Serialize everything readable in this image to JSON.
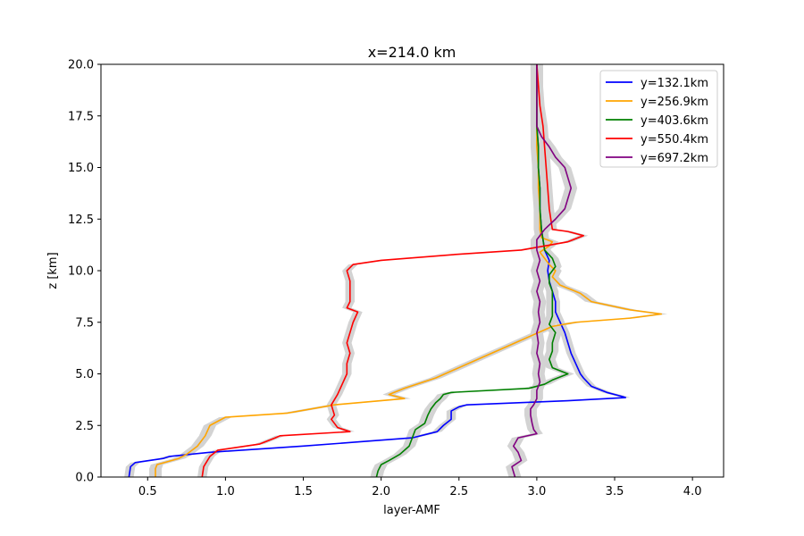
{
  "chart_data": {
    "type": "line",
    "title": "x=214.0 km",
    "xlabel": "layer-AMF",
    "ylabel": "z [km]",
    "xlim": [
      0.2,
      4.2
    ],
    "ylim": [
      0,
      20
    ],
    "xticks": [
      0.5,
      1.0,
      1.5,
      2.0,
      2.5,
      3.0,
      3.5,
      4.0
    ],
    "xtick_labels": [
      "0.5",
      "1.0",
      "1.5",
      "2.0",
      "2.5",
      "3.0",
      "3.5",
      "4.0"
    ],
    "yticks": [
      0,
      2.5,
      5,
      7.5,
      10,
      12.5,
      15,
      17.5,
      20
    ],
    "ytick_labels": [
      "0.0",
      "2.5",
      "5.0",
      "7.5",
      "10.0",
      "12.5",
      "15.0",
      "17.5",
      "20.0"
    ],
    "grid": false,
    "legend_placement": "top-right",
    "band_color": "#d3d3d3",
    "series": [
      {
        "name": "y=132.1km",
        "color": "#0000ff",
        "band_halfwidth": 0.03,
        "z": [
          0,
          0.5,
          0.7,
          0.9,
          1.0,
          1.2,
          1.5,
          1.7,
          1.9,
          2.2,
          2.5,
          2.8,
          3.2,
          3.4,
          3.5,
          3.7,
          3.85,
          3.9,
          4.1,
          4.4,
          4.8,
          5.0,
          5.5,
          6.0,
          6.5,
          7.0,
          7.5,
          8.0,
          8.5,
          9.0,
          9.5,
          10.0,
          10.5,
          11.0,
          11.5,
          12.0,
          13.0,
          14.0,
          15.0,
          16.0,
          17.0,
          18.0,
          19.0,
          20.0
        ],
        "x": [
          0.38,
          0.39,
          0.42,
          0.6,
          0.64,
          0.9,
          1.5,
          1.85,
          2.2,
          2.36,
          2.4,
          2.45,
          2.45,
          2.5,
          2.55,
          3.2,
          3.57,
          3.55,
          3.45,
          3.35,
          3.3,
          3.28,
          3.25,
          3.22,
          3.2,
          3.18,
          3.15,
          3.12,
          3.12,
          3.1,
          3.08,
          3.07,
          3.08,
          3.05,
          3.04,
          3.03,
          3.02,
          3.02,
          3.01,
          3.01,
          3.0,
          3.0,
          3.0,
          3.0
        ]
      },
      {
        "name": "y=256.9km",
        "color": "#ffa500",
        "band_halfwidth": 0.04,
        "z": [
          0,
          0.4,
          0.6,
          0.9,
          1.1,
          1.5,
          2.0,
          2.5,
          2.9,
          3.1,
          3.5,
          3.8,
          4.0,
          4.3,
          4.8,
          5.3,
          5.8,
          6.3,
          6.8,
          7.3,
          7.5,
          7.7,
          7.9,
          8.1,
          8.5,
          8.9,
          9.3,
          9.7,
          10.0,
          10.3,
          10.6,
          10.9,
          11.2,
          11.4,
          11.6,
          12.0,
          13.0,
          14.0,
          15.0,
          16.0,
          17.0,
          18.0,
          19.0,
          20.0
        ],
        "x": [
          0.55,
          0.55,
          0.56,
          0.7,
          0.75,
          0.82,
          0.87,
          0.9,
          1.0,
          1.4,
          1.7,
          2.15,
          2.05,
          2.15,
          2.35,
          2.5,
          2.65,
          2.8,
          2.95,
          3.1,
          3.25,
          3.6,
          3.8,
          3.6,
          3.35,
          3.28,
          3.15,
          3.1,
          3.12,
          3.08,
          3.05,
          3.02,
          3.08,
          3.1,
          3.03,
          3.02,
          3.02,
          3.01,
          3.01,
          3.0,
          3.0,
          3.0,
          3.0,
          3.0
        ]
      },
      {
        "name": "y=403.6km",
        "color": "#008000",
        "band_halfwidth": 0.04,
        "z": [
          0,
          0.3,
          0.6,
          0.8,
          1.1,
          1.5,
          1.9,
          2.3,
          2.6,
          3.0,
          3.3,
          3.6,
          3.8,
          4.0,
          4.1,
          4.3,
          4.5,
          4.7,
          5.0,
          5.3,
          5.7,
          6.1,
          6.5,
          7.0,
          7.4,
          7.8,
          8.2,
          8.6,
          9.0,
          9.4,
          9.8,
          10.2,
          10.6,
          11.0,
          11.5,
          12.0,
          13.0,
          14.0,
          15.0,
          16.0,
          17.0,
          18.0,
          19.0,
          20.0
        ],
        "x": [
          1.97,
          1.98,
          2.0,
          2.05,
          2.12,
          2.18,
          2.2,
          2.22,
          2.28,
          2.3,
          2.32,
          2.35,
          2.38,
          2.4,
          2.45,
          2.95,
          3.05,
          3.1,
          3.2,
          3.1,
          3.08,
          3.1,
          3.1,
          3.12,
          3.08,
          3.1,
          3.1,
          3.1,
          3.1,
          3.08,
          3.08,
          3.12,
          3.1,
          3.05,
          3.04,
          3.03,
          3.02,
          3.02,
          3.01,
          3.01,
          3.0,
          3.0,
          3.0,
          3.0
        ]
      },
      {
        "name": "y=550.4km",
        "color": "#ff0000",
        "band_halfwidth": 0.03,
        "z": [
          0,
          0.5,
          1.0,
          1.3,
          1.6,
          1.9,
          2.0,
          2.2,
          2.4,
          2.6,
          2.8,
          3.0,
          3.5,
          4.0,
          4.5,
          5.0,
          5.5,
          6.0,
          6.5,
          7.0,
          7.5,
          8.0,
          8.2,
          8.5,
          9.0,
          9.5,
          10.0,
          10.3,
          10.5,
          10.8,
          11.0,
          11.2,
          11.4,
          11.7,
          11.9,
          12.0,
          13.0,
          14.0,
          15.0,
          16.0,
          17.0,
          18.0,
          19.0,
          20.0
        ],
        "x": [
          0.85,
          0.86,
          0.9,
          0.95,
          1.22,
          1.32,
          1.35,
          1.8,
          1.72,
          1.7,
          1.68,
          1.7,
          1.68,
          1.72,
          1.75,
          1.78,
          1.78,
          1.8,
          1.78,
          1.8,
          1.82,
          1.85,
          1.78,
          1.8,
          1.8,
          1.8,
          1.78,
          1.82,
          2.0,
          2.5,
          2.9,
          3.05,
          3.2,
          3.3,
          3.2,
          3.1,
          3.08,
          3.07,
          3.06,
          3.05,
          3.04,
          3.02,
          3.01,
          3.0
        ]
      },
      {
        "name": "y=697.2km",
        "color": "#800080",
        "band_halfwidth": 0.04,
        "z": [
          0,
          0.5,
          0.8,
          1.2,
          1.5,
          1.9,
          2.1,
          2.3,
          2.6,
          3.0,
          3.3,
          3.5,
          3.8,
          4.2,
          4.6,
          5.0,
          5.5,
          6.0,
          6.5,
          7.0,
          7.5,
          8.0,
          8.5,
          9.0,
          9.5,
          10.0,
          10.5,
          11.0,
          11.5,
          12.0,
          12.5,
          13.0,
          13.5,
          14.0,
          14.5,
          15.0,
          15.5,
          16.0,
          16.5,
          17.0,
          17.5,
          18.0,
          19.0,
          20.0
        ],
        "x": [
          2.86,
          2.84,
          2.9,
          2.88,
          2.85,
          2.88,
          3.0,
          2.98,
          2.97,
          2.96,
          2.96,
          2.98,
          3.0,
          3.0,
          3.02,
          3.01,
          3.02,
          3.0,
          3.01,
          3.0,
          3.02,
          3.01,
          3.02,
          3.0,
          3.02,
          3.0,
          3.02,
          3.0,
          3.0,
          3.05,
          3.12,
          3.18,
          3.2,
          3.22,
          3.2,
          3.18,
          3.12,
          3.08,
          3.03,
          3.0,
          3.0,
          3.0,
          3.0,
          3.0
        ]
      }
    ]
  }
}
